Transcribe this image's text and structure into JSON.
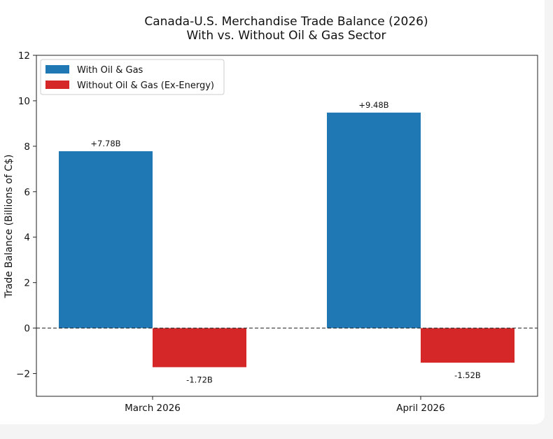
{
  "chart_data": {
    "type": "bar",
    "title": "Canada-U.S. Merchandise Trade Balance (2026)",
    "subtitle": "With vs. Without Oil & Gas Sector",
    "xlabel": "",
    "ylabel": "Trade Balance (Billions of C$)",
    "ylim": [
      -3,
      12
    ],
    "yticks": [
      -2,
      0,
      2,
      4,
      6,
      8,
      10,
      12
    ],
    "categories": [
      "March 2026",
      "April 2026"
    ],
    "series": [
      {
        "name": "With Oil & Gas",
        "color": "#1f77b4",
        "values": [
          7.78,
          9.48
        ],
        "labels": [
          "+7.78B",
          "+9.48B"
        ]
      },
      {
        "name": "Without Oil & Gas (Ex-Energy)",
        "color": "#d62728",
        "values": [
          -1.72,
          -1.52
        ],
        "labels": [
          "-1.72B",
          "-1.52B"
        ]
      }
    ],
    "zero_line": "dashed",
    "legend_position": "top-left",
    "grid": false
  }
}
